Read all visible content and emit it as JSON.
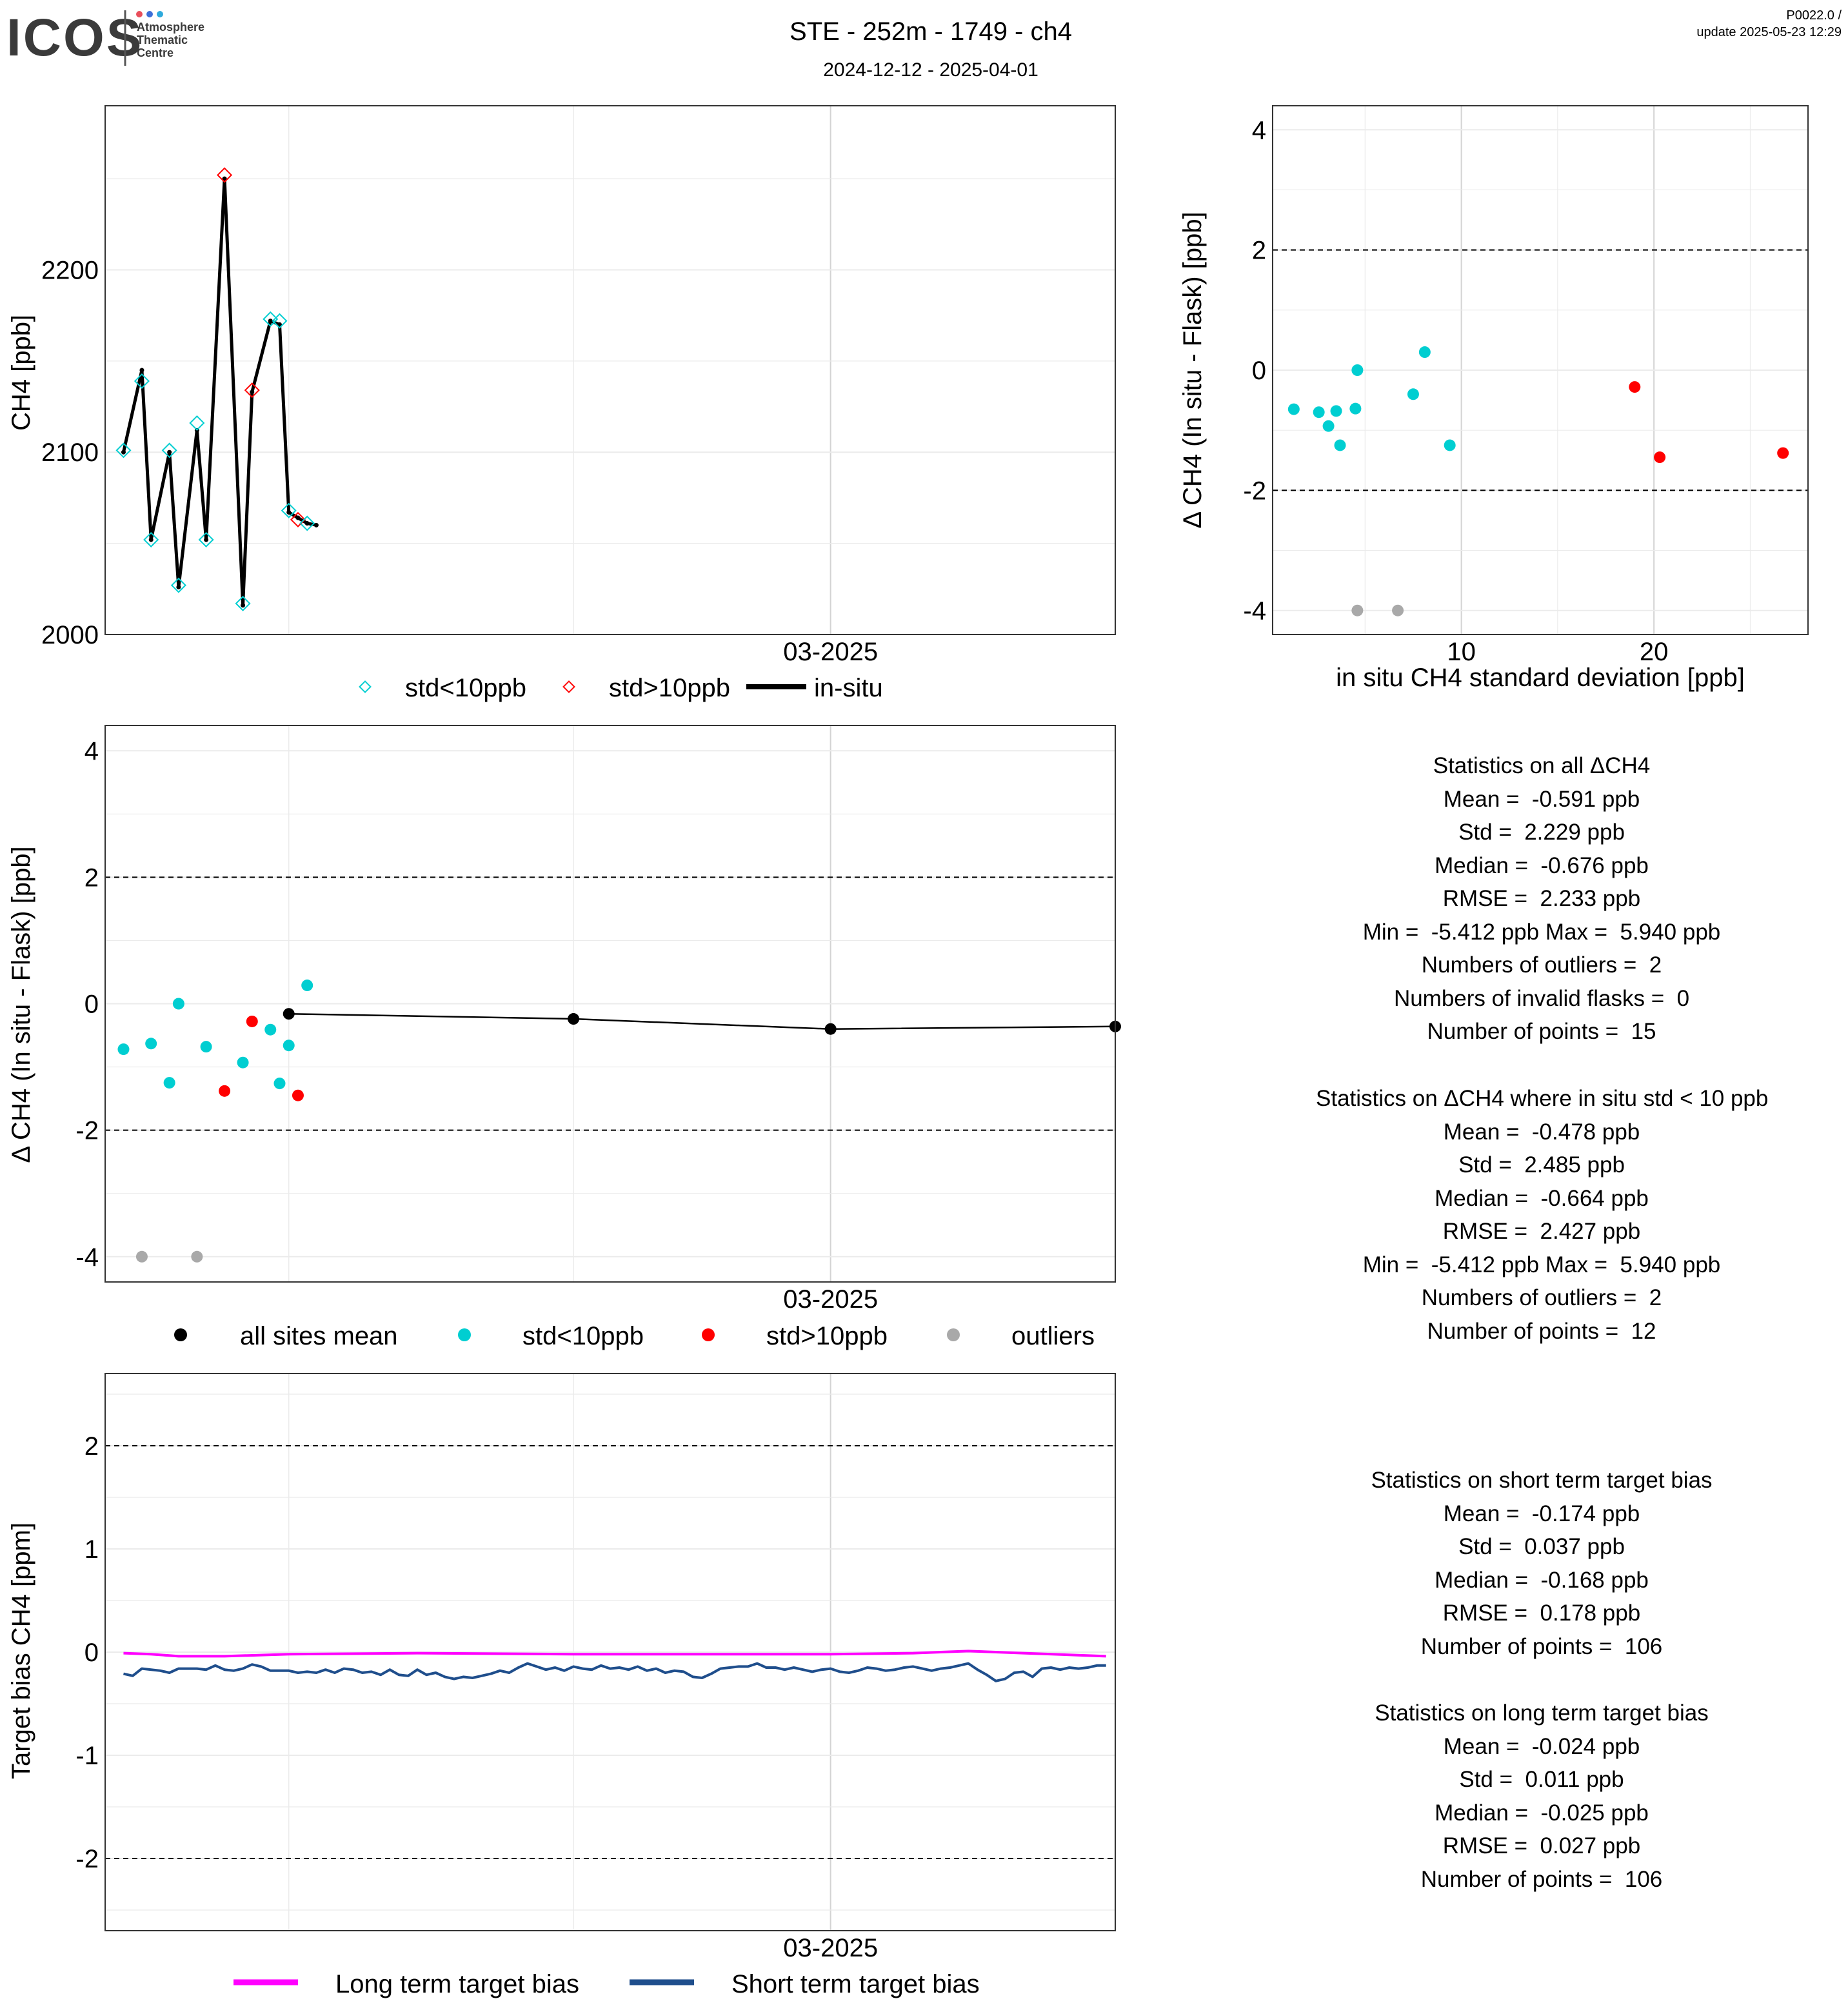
{
  "header": {
    "logo_text": "ICOS",
    "logo_subtitle": [
      "Atmosphere",
      "Thematic",
      "Centre"
    ],
    "title": "STE - 252m - 1749 - ch4",
    "subtitle": "2024-12-12 - 2025-04-01",
    "version": "P0022.0 /",
    "update": "update  2025-05-23 12:29"
  },
  "colors": {
    "std_lt10": "#00CED1",
    "std_gt10": "#FF0000",
    "outlier": "#A9A9A9",
    "mean": "#000000",
    "long_term": "#FF00FF",
    "short_term": "#1F4E8C",
    "grid": "#EBEBEB",
    "grid_vline": "#D3D3D3",
    "logo_dots": [
      "#E94F5B",
      "#3D6FD8",
      "#2EAADC"
    ]
  },
  "chart_data": [
    {
      "id": "timeseries",
      "type": "line",
      "ylabel": "CH4 [ppb]",
      "xlabel": "",
      "x_ticks": [
        "03-2025"
      ],
      "y_ticks": [
        2000,
        2100,
        2200
      ],
      "ylim": [
        2000,
        2290
      ],
      "xlim": [
        "2024-12-12",
        "2025-04-01"
      ],
      "grid": true,
      "legend": [
        "std<10ppb",
        "std>10ppb",
        "in-situ"
      ],
      "legend_position": "bottom",
      "flask_points": [
        {
          "date": "2024-12-14",
          "value": 2101,
          "class": "std<10ppb"
        },
        {
          "date": "2024-12-16",
          "value": 2139,
          "class": "std<10ppb"
        },
        {
          "date": "2024-12-17",
          "value": 2052,
          "class": "std<10ppb"
        },
        {
          "date": "2024-12-19",
          "value": 2101,
          "class": "std<10ppb"
        },
        {
          "date": "2024-12-20",
          "value": 2027,
          "class": "std<10ppb"
        },
        {
          "date": "2024-12-22",
          "value": 2116,
          "class": "std<10ppb"
        },
        {
          "date": "2024-12-23",
          "value": 2052,
          "class": "std<10ppb"
        },
        {
          "date": "2024-12-25",
          "value": 2252,
          "class": "std>10ppb"
        },
        {
          "date": "2024-12-27",
          "value": 2017,
          "class": "std<10ppb"
        },
        {
          "date": "2024-12-28",
          "value": 2134,
          "class": "std>10ppb"
        },
        {
          "date": "2024-12-30",
          "value": 2173,
          "class": "std<10ppb"
        },
        {
          "date": "2024-12-31",
          "value": 2172,
          "class": "std<10ppb"
        },
        {
          "date": "2025-01-01",
          "value": 2068,
          "class": "std<10ppb"
        },
        {
          "date": "2025-01-02",
          "value": 2063,
          "class": "std>10ppb"
        },
        {
          "date": "2025-01-03",
          "value": 2061,
          "class": "std<10ppb"
        }
      ],
      "in_situ": [
        {
          "date": "2024-12-14",
          "value": 2100
        },
        {
          "date": "2024-12-16",
          "value": 2145
        },
        {
          "date": "2024-12-17",
          "value": 2052
        },
        {
          "date": "2024-12-19",
          "value": 2100
        },
        {
          "date": "2024-12-20",
          "value": 2026
        },
        {
          "date": "2024-12-22",
          "value": 2112
        },
        {
          "date": "2024-12-23",
          "value": 2052
        },
        {
          "date": "2024-12-25",
          "value": 2250
        },
        {
          "date": "2024-12-27",
          "value": 2016
        },
        {
          "date": "2024-12-28",
          "value": 2133
        },
        {
          "date": "2024-12-30",
          "value": 2172
        },
        {
          "date": "2024-12-31",
          "value": 2170
        },
        {
          "date": "2025-01-01",
          "value": 2067
        },
        {
          "date": "2025-01-02",
          "value": 2064
        },
        {
          "date": "2025-01-03",
          "value": 2061
        },
        {
          "date": "2025-01-04",
          "value": 2060
        }
      ]
    },
    {
      "id": "scatter-std",
      "type": "scatter",
      "xlabel": "in situ CH4 standard deviation [ppb]",
      "ylabel": "Δ CH4 (In situ - Flask) [ppb]",
      "x_ticks": [
        10,
        20
      ],
      "y_ticks": [
        -4,
        -2,
        0,
        2,
        4
      ],
      "xlim": [
        0.2,
        28
      ],
      "ylim": [
        -4.4,
        4.4
      ],
      "hlines": [
        -2,
        2
      ],
      "grid": true,
      "points": [
        {
          "x": 1.3,
          "y": -0.65,
          "class": "std<10ppb"
        },
        {
          "x": 2.6,
          "y": -0.7,
          "class": "std<10ppb"
        },
        {
          "x": 3.1,
          "y": -0.93,
          "class": "std<10ppb"
        },
        {
          "x": 3.5,
          "y": -0.68,
          "class": "std<10ppb"
        },
        {
          "x": 3.7,
          "y": -1.25,
          "class": "std<10ppb"
        },
        {
          "x": 4.5,
          "y": -0.64,
          "class": "std<10ppb"
        },
        {
          "x": 4.6,
          "y": 0.0,
          "class": "std<10ppb"
        },
        {
          "x": 7.5,
          "y": -0.4,
          "class": "std<10ppb"
        },
        {
          "x": 8.1,
          "y": 0.3,
          "class": "std<10ppb"
        },
        {
          "x": 9.4,
          "y": -1.25,
          "class": "std<10ppb"
        },
        {
          "x": 19.0,
          "y": -0.28,
          "class": "std>10ppb"
        },
        {
          "x": 20.3,
          "y": -1.45,
          "class": "std>10ppb"
        },
        {
          "x": 26.7,
          "y": -1.38,
          "class": "std>10ppb"
        },
        {
          "x": 4.6,
          "y": -4.0,
          "class": "outliers"
        },
        {
          "x": 6.7,
          "y": -4.0,
          "class": "outliers"
        }
      ]
    },
    {
      "id": "delta-timeseries",
      "type": "scatter",
      "xlabel": "",
      "ylabel": "Δ CH4 (In situ - Flask) [ppb]",
      "x_ticks": [
        "03-2025"
      ],
      "y_ticks": [
        -4,
        -2,
        0,
        2,
        4
      ],
      "xlim": [
        "2024-12-12",
        "2025-04-01"
      ],
      "ylim": [
        -4.4,
        4.4
      ],
      "hlines": [
        -2,
        2
      ],
      "grid": true,
      "legend": [
        "all sites mean",
        "std<10ppb",
        "std>10ppb",
        "outliers"
      ],
      "legend_position": "bottom",
      "points": [
        {
          "date": "2024-12-14",
          "y": -0.72,
          "class": "std<10ppb"
        },
        {
          "date": "2024-12-17",
          "y": -0.63,
          "class": "std<10ppb"
        },
        {
          "date": "2024-12-19",
          "y": -1.25,
          "class": "std<10ppb"
        },
        {
          "date": "2024-12-20",
          "y": 0.0,
          "class": "std<10ppb"
        },
        {
          "date": "2024-12-23",
          "y": -0.68,
          "class": "std<10ppb"
        },
        {
          "date": "2024-12-27",
          "y": -0.93,
          "class": "std<10ppb"
        },
        {
          "date": "2024-12-30",
          "y": -0.41,
          "class": "std<10ppb"
        },
        {
          "date": "2024-12-31",
          "y": -1.26,
          "class": "std<10ppb"
        },
        {
          "date": "2025-01-01",
          "y": -0.66,
          "class": "std<10ppb"
        },
        {
          "date": "2025-01-03",
          "y": 0.29,
          "class": "std<10ppb"
        },
        {
          "date": "2024-12-25",
          "y": -1.38,
          "class": "std>10ppb"
        },
        {
          "date": "2024-12-28",
          "y": -0.28,
          "class": "std>10ppb"
        },
        {
          "date": "2025-01-02",
          "y": -1.45,
          "class": "std>10ppb"
        },
        {
          "date": "2024-12-16",
          "y": -4.0,
          "class": "outliers"
        },
        {
          "date": "2024-12-22",
          "y": -4.0,
          "class": "outliers"
        }
      ],
      "mean_series": [
        {
          "date": "2025-01-01",
          "y": -0.16
        },
        {
          "date": "2025-02-01",
          "y": -0.24
        },
        {
          "date": "2025-03-01",
          "y": -0.4
        },
        {
          "date": "2025-04-01",
          "y": -0.36
        }
      ]
    },
    {
      "id": "target-bias",
      "type": "line",
      "xlabel": "",
      "ylabel": "Target bias CH4 [ppm]",
      "x_ticks": [
        "03-2025"
      ],
      "y_ticks": [
        -2,
        -1,
        0,
        1,
        2
      ],
      "xlim": [
        "2024-12-12",
        "2025-04-01"
      ],
      "ylim": [
        -2.7,
        2.7
      ],
      "hlines": [
        -2,
        2
      ],
      "grid": true,
      "legend": [
        "Long term target bias",
        "Short term target bias"
      ],
      "legend_position": "bottom",
      "series": [
        {
          "name": "Long term target bias",
          "color": "#FF00FF",
          "points": [
            [
              "2024-12-14",
              -0.01
            ],
            [
              "2024-12-17",
              -0.02
            ],
            [
              "2024-12-20",
              -0.04
            ],
            [
              "2024-12-25",
              -0.04
            ],
            [
              "2025-01-01",
              -0.02
            ],
            [
              "2025-01-15",
              -0.01
            ],
            [
              "2025-02-01",
              -0.02
            ],
            [
              "2025-02-15",
              -0.02
            ],
            [
              "2025-03-01",
              -0.02
            ],
            [
              "2025-03-10",
              -0.01
            ],
            [
              "2025-03-16",
              0.01
            ],
            [
              "2025-03-22",
              -0.01
            ],
            [
              "2025-03-31",
              -0.04
            ]
          ]
        },
        {
          "name": "Short term target bias",
          "color": "#1F4E8C",
          "points": [
            [
              "2024-12-14",
              -0.21
            ],
            [
              "2024-12-15",
              -0.23
            ],
            [
              "2024-12-16",
              -0.16
            ],
            [
              "2024-12-18",
              -0.18
            ],
            [
              "2024-12-19",
              -0.2
            ],
            [
              "2024-12-20",
              -0.16
            ],
            [
              "2024-12-22",
              -0.16
            ],
            [
              "2024-12-23",
              -0.17
            ],
            [
              "2024-12-24",
              -0.13
            ],
            [
              "2024-12-25",
              -0.17
            ],
            [
              "2024-12-26",
              -0.18
            ],
            [
              "2024-12-27",
              -0.16
            ],
            [
              "2024-12-28",
              -0.12
            ],
            [
              "2024-12-29",
              -0.14
            ],
            [
              "2024-12-30",
              -0.18
            ],
            [
              "2025-01-01",
              -0.18
            ],
            [
              "2025-01-02",
              -0.2
            ],
            [
              "2025-01-03",
              -0.19
            ],
            [
              "2025-01-04",
              -0.2
            ],
            [
              "2025-01-05",
              -0.17
            ],
            [
              "2025-01-06",
              -0.2
            ],
            [
              "2025-01-07",
              -0.16
            ],
            [
              "2025-01-08",
              -0.17
            ],
            [
              "2025-01-09",
              -0.2
            ],
            [
              "2025-01-10",
              -0.19
            ],
            [
              "2025-01-11",
              -0.22
            ],
            [
              "2025-01-12",
              -0.17
            ],
            [
              "2025-01-13",
              -0.22
            ],
            [
              "2025-01-14",
              -0.23
            ],
            [
              "2025-01-15",
              -0.17
            ],
            [
              "2025-01-16",
              -0.22
            ],
            [
              "2025-01-17",
              -0.2
            ],
            [
              "2025-01-18",
              -0.24
            ],
            [
              "2025-01-19",
              -0.26
            ],
            [
              "2025-01-20",
              -0.24
            ],
            [
              "2025-01-21",
              -0.25
            ],
            [
              "2025-01-22",
              -0.23
            ],
            [
              "2025-01-23",
              -0.21
            ],
            [
              "2025-01-24",
              -0.18
            ],
            [
              "2025-01-25",
              -0.2
            ],
            [
              "2025-01-26",
              -0.15
            ],
            [
              "2025-01-27",
              -0.11
            ],
            [
              "2025-01-28",
              -0.14
            ],
            [
              "2025-01-29",
              -0.17
            ],
            [
              "2025-01-30",
              -0.15
            ],
            [
              "2025-01-31",
              -0.18
            ],
            [
              "2025-02-01",
              -0.14
            ],
            [
              "2025-02-02",
              -0.16
            ],
            [
              "2025-02-03",
              -0.17
            ],
            [
              "2025-02-04",
              -0.13
            ],
            [
              "2025-02-05",
              -0.16
            ],
            [
              "2025-02-06",
              -0.15
            ],
            [
              "2025-02-07",
              -0.17
            ],
            [
              "2025-02-08",
              -0.14
            ],
            [
              "2025-02-09",
              -0.18
            ],
            [
              "2025-02-10",
              -0.16
            ],
            [
              "2025-02-11",
              -0.2
            ],
            [
              "2025-02-12",
              -0.18
            ],
            [
              "2025-02-13",
              -0.19
            ],
            [
              "2025-02-14",
              -0.24
            ],
            [
              "2025-02-15",
              -0.25
            ],
            [
              "2025-02-16",
              -0.21
            ],
            [
              "2025-02-17",
              -0.16
            ],
            [
              "2025-02-18",
              -0.15
            ],
            [
              "2025-02-19",
              -0.14
            ],
            [
              "2025-02-20",
              -0.14
            ],
            [
              "2025-02-21",
              -0.11
            ],
            [
              "2025-02-22",
              -0.15
            ],
            [
              "2025-02-23",
              -0.15
            ],
            [
              "2025-02-24",
              -0.17
            ],
            [
              "2025-02-25",
              -0.15
            ],
            [
              "2025-02-26",
              -0.17
            ],
            [
              "2025-02-27",
              -0.19
            ],
            [
              "2025-02-28",
              -0.17
            ],
            [
              "2025-03-01",
              -0.16
            ],
            [
              "2025-03-02",
              -0.19
            ],
            [
              "2025-03-03",
              -0.2
            ],
            [
              "2025-03-04",
              -0.18
            ],
            [
              "2025-03-05",
              -0.15
            ],
            [
              "2025-03-06",
              -0.16
            ],
            [
              "2025-03-07",
              -0.18
            ],
            [
              "2025-03-08",
              -0.17
            ],
            [
              "2025-03-09",
              -0.15
            ],
            [
              "2025-03-10",
              -0.14
            ],
            [
              "2025-03-11",
              -0.16
            ],
            [
              "2025-03-12",
              -0.18
            ],
            [
              "2025-03-13",
              -0.16
            ],
            [
              "2025-03-14",
              -0.15
            ],
            [
              "2025-03-15",
              -0.13
            ],
            [
              "2025-03-16",
              -0.11
            ],
            [
              "2025-03-17",
              -0.17
            ],
            [
              "2025-03-18",
              -0.22
            ],
            [
              "2025-03-19",
              -0.28
            ],
            [
              "2025-03-20",
              -0.26
            ],
            [
              "2025-03-21",
              -0.2
            ],
            [
              "2025-03-22",
              -0.19
            ],
            [
              "2025-03-23",
              -0.24
            ],
            [
              "2025-03-24",
              -0.16
            ],
            [
              "2025-03-25",
              -0.15
            ],
            [
              "2025-03-26",
              -0.17
            ],
            [
              "2025-03-27",
              -0.15
            ],
            [
              "2025-03-28",
              -0.16
            ],
            [
              "2025-03-29",
              -0.15
            ],
            [
              "2025-03-30",
              -0.13
            ],
            [
              "2025-03-31",
              -0.13
            ]
          ]
        }
      ]
    }
  ],
  "stats": {
    "all_delta": {
      "title": "Statistics on all ΔCH4",
      "lines": [
        "Mean =  -0.591 ppb",
        "Std =  2.229 ppb",
        "Median =  -0.676 ppb",
        "RMSE =  2.233 ppb",
        "Min =  -5.412 ppb Max =  5.940 ppb",
        "Numbers of outliers =  2",
        "Numbers of invalid flasks =  0",
        "Number of points =  15"
      ]
    },
    "std_lt10": {
      "title": "Statistics on ΔCH4 where in situ std < 10 ppb",
      "lines": [
        "Mean =  -0.478 ppb",
        "Std =  2.485 ppb",
        "Median =  -0.664 ppb",
        "RMSE =  2.427 ppb",
        "Min =  -5.412 ppb Max =  5.940 ppb",
        "Numbers of outliers =  2",
        "Number of points =  12"
      ]
    },
    "short_term": {
      "title": "Statistics on short term target bias",
      "lines": [
        "Mean =  -0.174 ppb",
        "Std =  0.037 ppb",
        "Median =  -0.168 ppb",
        "RMSE =  0.178 ppb",
        "Number of points =  106"
      ]
    },
    "long_term": {
      "title": "Statistics on long term target bias",
      "lines": [
        "Mean =  -0.024 ppb",
        "Std =  0.011 ppb",
        "Median =  -0.025 ppb",
        "RMSE =  0.027 ppb",
        "Number of points =  106"
      ]
    }
  }
}
